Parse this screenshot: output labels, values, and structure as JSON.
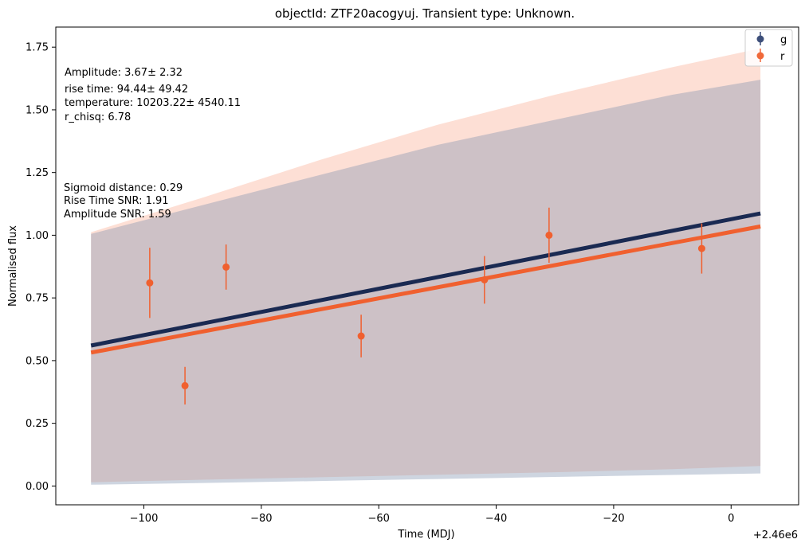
{
  "chart_data": {
    "type": "scatter",
    "title": "objectId: ZTF20acogyuj. Transient type: Unknown.",
    "xlabel": "Time (MDJ)",
    "ylabel": "Normalised flux",
    "x_offset_label": "+2.46e6",
    "xlim": [
      -115,
      11.5
    ],
    "ylim": [
      -0.075,
      1.83
    ],
    "xticks": [
      -100,
      -80,
      -60,
      -40,
      -20,
      0
    ],
    "xtick_labels": [
      "−100",
      "−80",
      "−60",
      "−40",
      "−20",
      "0"
    ],
    "yticks": [
      0.0,
      0.25,
      0.5,
      0.75,
      1.0,
      1.25,
      1.5,
      1.75
    ],
    "ytick_labels": [
      "0.00",
      "0.25",
      "0.50",
      "0.75",
      "1.00",
      "1.25",
      "1.50",
      "1.75"
    ],
    "grid": false,
    "legend": {
      "placement": "top-right",
      "entries": [
        {
          "name": "g",
          "color": "#3d4f7a"
        },
        {
          "name": "r",
          "color": "#f0693a"
        }
      ]
    },
    "annotations_top": [
      "Amplitude: 3.67± 2.32",
      "rise time: 94.44± 49.42",
      "temperature: 10203.22± 4540.11",
      "r_chisq: 6.78"
    ],
    "annotations_mid": [
      "Sigmoid distance: 0.29",
      "Rise Time SNR: 1.91",
      "Amplitude SNR: 1.59"
    ],
    "series": [
      {
        "name": "g",
        "color": "#1a2a52",
        "band_color": "#7f90ad",
        "fit_x": [
          -109,
          5
        ],
        "fit_y": [
          0.56,
          1.087
        ],
        "band": {
          "x": [
            -109,
            -90,
            -70,
            -50,
            -30,
            -10,
            5
          ],
          "lower": [
            0.005,
            0.012,
            0.02,
            0.028,
            0.036,
            0.044,
            0.05
          ],
          "upper": [
            1.005,
            1.12,
            1.24,
            1.36,
            1.46,
            1.56,
            1.62
          ]
        },
        "points": []
      },
      {
        "name": "r",
        "color": "#f0602f",
        "band_color": "#f8a486",
        "fit_x": [
          -109,
          5
        ],
        "fit_y": [
          0.532,
          1.035
        ],
        "band": {
          "x": [
            -109,
            -90,
            -70,
            -50,
            -30,
            -10,
            5
          ],
          "lower": [
            0.015,
            0.025,
            0.035,
            0.045,
            0.055,
            0.067,
            0.08
          ],
          "upper": [
            1.012,
            1.15,
            1.3,
            1.44,
            1.56,
            1.67,
            1.745
          ]
        },
        "points": [
          {
            "x": -99,
            "y": 0.81,
            "yerr": 0.14
          },
          {
            "x": -93,
            "y": 0.4,
            "yerr": 0.075
          },
          {
            "x": -86,
            "y": 0.873,
            "yerr": 0.09
          },
          {
            "x": -63,
            "y": 0.598,
            "yerr": 0.085
          },
          {
            "x": -42,
            "y": 0.822,
            "yerr": 0.095
          },
          {
            "x": -31,
            "y": 1.0,
            "yerr": 0.11
          },
          {
            "x": -5,
            "y": 0.947,
            "yerr": 0.1
          }
        ]
      }
    ]
  }
}
